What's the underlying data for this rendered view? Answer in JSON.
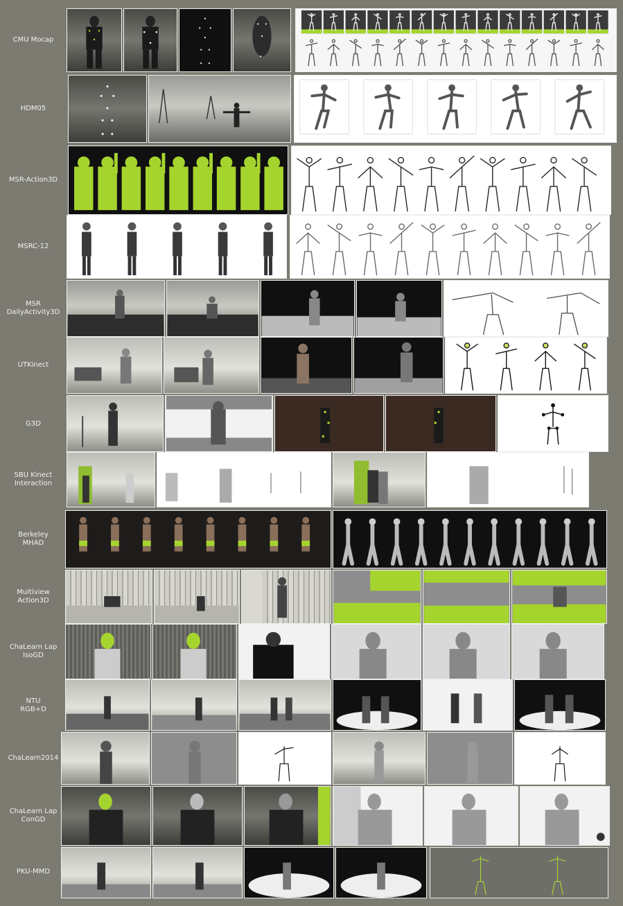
{
  "dataset_rows": [
    {
      "label": "CMU Mocap"
    },
    {
      "label": "HDM05"
    },
    {
      "label": "MSR-Action3D"
    },
    {
      "label": "MSRC-12"
    },
    {
      "label": "MSR\nDailyActivity3D"
    },
    {
      "label": "UTKinect"
    },
    {
      "label": "G3D"
    },
    {
      "label": "SBU Kinect\nInteraction"
    },
    {
      "label": "Berkeley\nMHAD"
    },
    {
      "label": "Multiview\nAction3D"
    },
    {
      "label": "ChaLearn Lap\nIsoGD"
    },
    {
      "label": "NTU\nRGB+D"
    },
    {
      "label": "ChaLearn2014"
    },
    {
      "label": "ChaLearn Lap\nConGD"
    },
    {
      "label": "PKU-MMD"
    }
  ],
  "colors": {
    "background": "#7c7b72",
    "label_text": "#f2f2ec",
    "accent_green": "#a6d42e"
  }
}
